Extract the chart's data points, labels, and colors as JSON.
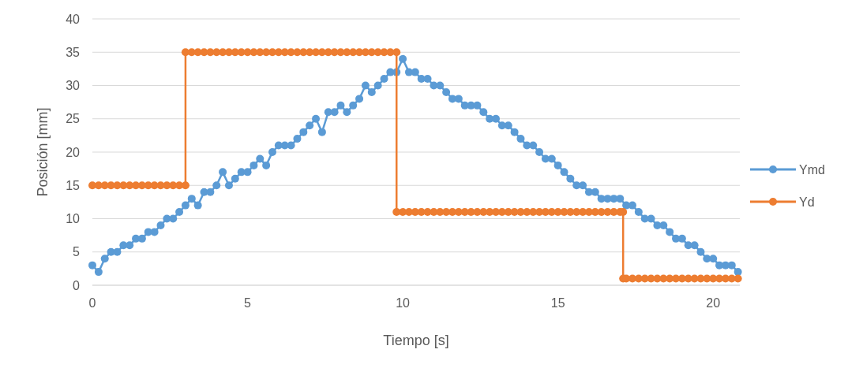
{
  "chart_data": {
    "type": "line",
    "xlabel": "Tiempo [s]",
    "ylabel": "Posición [mm]",
    "xlim": [
      0,
      20.86
    ],
    "xticks": [
      0,
      5,
      10,
      15,
      20
    ],
    "ylim": [
      0,
      40
    ],
    "yticks": [
      0,
      5,
      10,
      15,
      20,
      25,
      30,
      35,
      40
    ],
    "grid": "y",
    "legend": "right",
    "marker": "circle",
    "line_style": "solid",
    "series": [
      {
        "name": "Ymd",
        "color": "#5b9bd5",
        "x": [
          0,
          0.2,
          0.4,
          0.6,
          0.8,
          1,
          1.2,
          1.4,
          1.6,
          1.8,
          2,
          2.2,
          2.4,
          2.6,
          2.8,
          3,
          3.2,
          3.4,
          3.6,
          3.8,
          4,
          4.2,
          4.4,
          4.6,
          4.8,
          5,
          5.2,
          5.4,
          5.6,
          5.8,
          6,
          6.2,
          6.4,
          6.6,
          6.8,
          7,
          7.2,
          7.4,
          7.6,
          7.8,
          8,
          8.2,
          8.4,
          8.6,
          8.8,
          9,
          9.2,
          9.4,
          9.6,
          9.8,
          10,
          10.2,
          10.4,
          10.6,
          10.8,
          11,
          11.2,
          11.4,
          11.6,
          11.8,
          12,
          12.2,
          12.4,
          12.6,
          12.8,
          13,
          13.2,
          13.4,
          13.6,
          13.8,
          14,
          14.2,
          14.4,
          14.6,
          14.8,
          15,
          15.2,
          15.4,
          15.6,
          15.8,
          16,
          16.2,
          16.4,
          16.6,
          16.8,
          17,
          17.2,
          17.4,
          17.6,
          17.8,
          18,
          18.2,
          18.4,
          18.6,
          18.8,
          19,
          19.2,
          19.4,
          19.6,
          19.8,
          20,
          20.2,
          20.4,
          20.6,
          20.8
        ],
        "values": [
          3,
          2,
          4,
          5,
          5,
          6,
          6,
          7,
          7,
          8,
          8,
          9,
          10,
          10,
          11,
          12,
          13,
          12,
          14,
          14,
          15,
          17,
          15,
          16,
          17,
          17,
          18,
          19,
          18,
          20,
          21,
          21,
          21,
          22,
          23,
          24,
          25,
          23,
          26,
          26,
          27,
          26,
          27,
          28,
          30,
          29,
          30,
          31,
          32,
          32,
          34,
          32,
          32,
          31,
          31,
          30,
          30,
          29,
          28,
          28,
          27,
          27,
          27,
          26,
          25,
          25,
          24,
          24,
          23,
          22,
          21,
          21,
          20,
          19,
          19,
          18,
          17,
          16,
          15,
          15,
          14,
          14,
          13,
          13,
          13,
          13,
          12,
          12,
          11,
          10,
          10,
          9,
          9,
          8,
          7,
          7,
          6,
          6,
          5,
          4,
          4,
          3,
          3,
          3,
          2
        ]
      },
      {
        "name": "Yd",
        "color": "#ed7d31",
        "x": [
          0,
          0.2,
          0.4,
          0.6,
          0.8,
          1,
          1.2,
          1.4,
          1.6,
          1.8,
          2,
          2.2,
          2.4,
          2.6,
          2.8,
          3,
          3,
          3.2,
          3.4,
          3.6,
          3.8,
          4,
          4.2,
          4.4,
          4.6,
          4.8,
          5,
          5.2,
          5.4,
          5.6,
          5.8,
          6,
          6.2,
          6.4,
          6.6,
          6.8,
          7,
          7.2,
          7.4,
          7.6,
          7.8,
          8,
          8.2,
          8.4,
          8.6,
          8.8,
          9,
          9.2,
          9.4,
          9.6,
          9.8,
          9.8,
          10,
          10.2,
          10.4,
          10.6,
          10.8,
          11,
          11.2,
          11.4,
          11.6,
          11.8,
          12,
          12.2,
          12.4,
          12.6,
          12.8,
          13,
          13.2,
          13.4,
          13.6,
          13.8,
          14,
          14.2,
          14.4,
          14.6,
          14.8,
          15,
          15.2,
          15.4,
          15.6,
          15.8,
          16,
          16.2,
          16.4,
          16.6,
          16.8,
          17,
          17.1,
          17.1,
          17.2,
          17.4,
          17.6,
          17.8,
          18,
          18.2,
          18.4,
          18.6,
          18.8,
          19,
          19.2,
          19.4,
          19.6,
          19.8,
          20,
          20.2,
          20.4,
          20.6,
          20.8
        ],
        "values": [
          15,
          15,
          15,
          15,
          15,
          15,
          15,
          15,
          15,
          15,
          15,
          15,
          15,
          15,
          15,
          15,
          35,
          35,
          35,
          35,
          35,
          35,
          35,
          35,
          35,
          35,
          35,
          35,
          35,
          35,
          35,
          35,
          35,
          35,
          35,
          35,
          35,
          35,
          35,
          35,
          35,
          35,
          35,
          35,
          35,
          35,
          35,
          35,
          35,
          35,
          35,
          11,
          11,
          11,
          11,
          11,
          11,
          11,
          11,
          11,
          11,
          11,
          11,
          11,
          11,
          11,
          11,
          11,
          11,
          11,
          11,
          11,
          11,
          11,
          11,
          11,
          11,
          11,
          11,
          11,
          11,
          11,
          11,
          11,
          11,
          11,
          11,
          11,
          11,
          1,
          1,
          1,
          1,
          1,
          1,
          1,
          1,
          1,
          1,
          1,
          1,
          1,
          1,
          1,
          1,
          1,
          1,
          1,
          1
        ]
      }
    ]
  }
}
